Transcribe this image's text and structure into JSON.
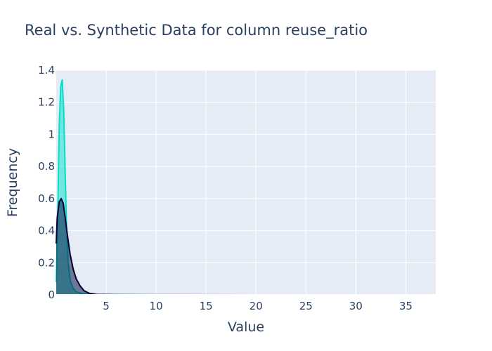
{
  "chart_data": {
    "type": "area",
    "title": "Real vs. Synthetic Data for column reuse_ratio",
    "xlabel": "Value",
    "ylabel": "Frequency",
    "xlim": [
      0,
      38
    ],
    "ylim": [
      0,
      1.4
    ],
    "x_ticks": [
      5,
      10,
      15,
      20,
      25,
      30,
      35
    ],
    "y_ticks": [
      0,
      0.2,
      0.4,
      0.6,
      0.8,
      1,
      1.2,
      1.4
    ],
    "x_tick_labels": [
      "5",
      "10",
      "15",
      "20",
      "25",
      "30",
      "35"
    ],
    "y_tick_labels": [
      "0",
      "0.2",
      "0.4",
      "0.6",
      "0.8",
      "1",
      "1.2",
      "1.4"
    ],
    "grid": true,
    "legend": "none",
    "series": [
      {
        "color": "#01e0c9",
        "fill": "rgba(1,224,201,0.5)",
        "x": [
          0,
          0.15,
          0.3,
          0.45,
          0.6,
          0.75,
          0.9,
          1.05,
          1.2,
          1.4,
          1.7,
          2.0,
          2.4,
          3.0,
          4.0,
          6.0,
          9.5
        ],
        "y": [
          0.08,
          0.5,
          1.05,
          1.3,
          1.34,
          1.15,
          0.75,
          0.4,
          0.2,
          0.09,
          0.04,
          0.02,
          0.01,
          0.005,
          0.002,
          0.001,
          0
        ]
      },
      {
        "color": "#000036",
        "fill": "rgba(0,0,54,0.5)",
        "x": [
          0,
          0.1,
          0.3,
          0.5,
          0.7,
          0.9,
          1.1,
          1.4,
          1.7,
          2.0,
          2.4,
          2.8,
          3.3,
          4.0,
          6.0,
          10.0,
          20.0,
          38.0
        ],
        "y": [
          0.32,
          0.48,
          0.58,
          0.6,
          0.57,
          0.48,
          0.38,
          0.25,
          0.16,
          0.1,
          0.055,
          0.025,
          0.01,
          0.003,
          0.001,
          0.0005,
          0.0002,
          0.0001
        ]
      }
    ]
  }
}
